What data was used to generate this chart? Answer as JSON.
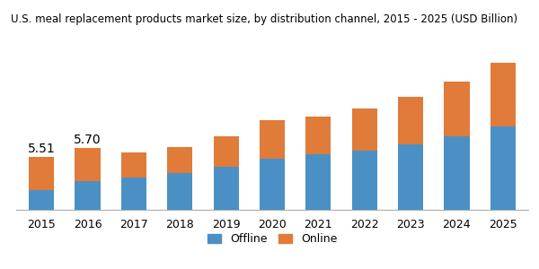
{
  "title": "U.S. meal replacement products market size, by distribution channel, 2015 - 2025 (USD Billion)",
  "years": [
    2015,
    2016,
    2017,
    2018,
    2019,
    2020,
    2021,
    2022,
    2023,
    2024,
    2025
  ],
  "offline": [
    4.82,
    5.0,
    5.08,
    5.18,
    5.3,
    5.48,
    5.58,
    5.65,
    5.78,
    5.95,
    6.15
  ],
  "online": [
    0.69,
    0.7,
    0.52,
    0.55,
    0.65,
    0.8,
    0.78,
    0.88,
    1.0,
    1.15,
    1.35
  ],
  "annotations": [
    {
      "year": 2015,
      "text": "5.51",
      "total": 5.51
    },
    {
      "year": 2016,
      "text": "5.70",
      "total": 5.7
    }
  ],
  "offline_color": "#4A90C4",
  "online_color": "#E07B39",
  "bar_width": 0.55,
  "ylim": [
    4.4,
    7.8
  ],
  "title_fontsize": 8.5,
  "legend_fontsize": 9,
  "tick_fontsize": 9,
  "ann_fontsize": 10,
  "background_color": "#ffffff"
}
